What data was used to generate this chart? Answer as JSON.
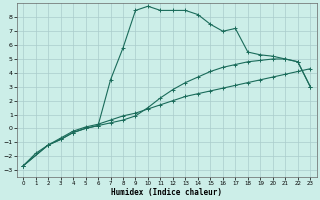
{
  "xlabel": "Humidex (Indice chaleur)",
  "background_color": "#cceee8",
  "grid_color": "#aacccc",
  "line_color": "#1a6b5a",
  "xlim": [
    -0.5,
    23.5
  ],
  "ylim": [
    -3.5,
    9.0
  ],
  "xticks": [
    0,
    1,
    2,
    3,
    4,
    5,
    6,
    7,
    8,
    9,
    10,
    11,
    12,
    13,
    14,
    15,
    16,
    17,
    18,
    19,
    20,
    21,
    22,
    23
  ],
  "yticks": [
    -3,
    -2,
    -1,
    0,
    1,
    2,
    3,
    4,
    5,
    6,
    7,
    8
  ],
  "line1_x": [
    0,
    1,
    2,
    3,
    4,
    5,
    6,
    7,
    8,
    9,
    10,
    11,
    12,
    13,
    14,
    15,
    16,
    17,
    18,
    19,
    20,
    21,
    22,
    23
  ],
  "line1_y": [
    -2.7,
    -1.8,
    -1.2,
    -0.7,
    -0.2,
    0.1,
    0.3,
    0.6,
    0.9,
    1.1,
    1.4,
    1.7,
    2.0,
    2.3,
    2.5,
    2.7,
    2.9,
    3.1,
    3.3,
    3.5,
    3.7,
    3.9,
    4.1,
    4.3
  ],
  "line2_x": [
    0,
    2,
    3,
    4,
    5,
    6,
    7,
    8,
    9,
    10,
    11,
    12,
    13,
    14,
    15,
    16,
    17,
    18,
    19,
    20,
    21,
    22,
    23
  ],
  "line2_y": [
    -2.7,
    -1.2,
    -0.8,
    -0.3,
    0.0,
    0.2,
    0.4,
    0.6,
    0.9,
    1.5,
    2.2,
    2.8,
    3.3,
    3.7,
    4.1,
    4.4,
    4.6,
    4.8,
    4.9,
    5.0,
    5.0,
    4.8,
    3.0
  ],
  "line3_x": [
    0,
    2,
    3,
    4,
    5,
    6,
    7,
    8,
    9,
    10,
    11,
    12,
    13,
    14,
    15,
    16,
    17,
    18,
    19,
    20,
    21,
    22,
    23
  ],
  "line3_y": [
    -2.7,
    -1.2,
    -0.8,
    -0.3,
    0.0,
    0.2,
    3.5,
    5.8,
    8.5,
    8.8,
    8.5,
    8.5,
    8.5,
    8.2,
    7.5,
    7.0,
    7.2,
    5.5,
    5.3,
    5.2,
    5.0,
    4.8,
    3.0
  ]
}
